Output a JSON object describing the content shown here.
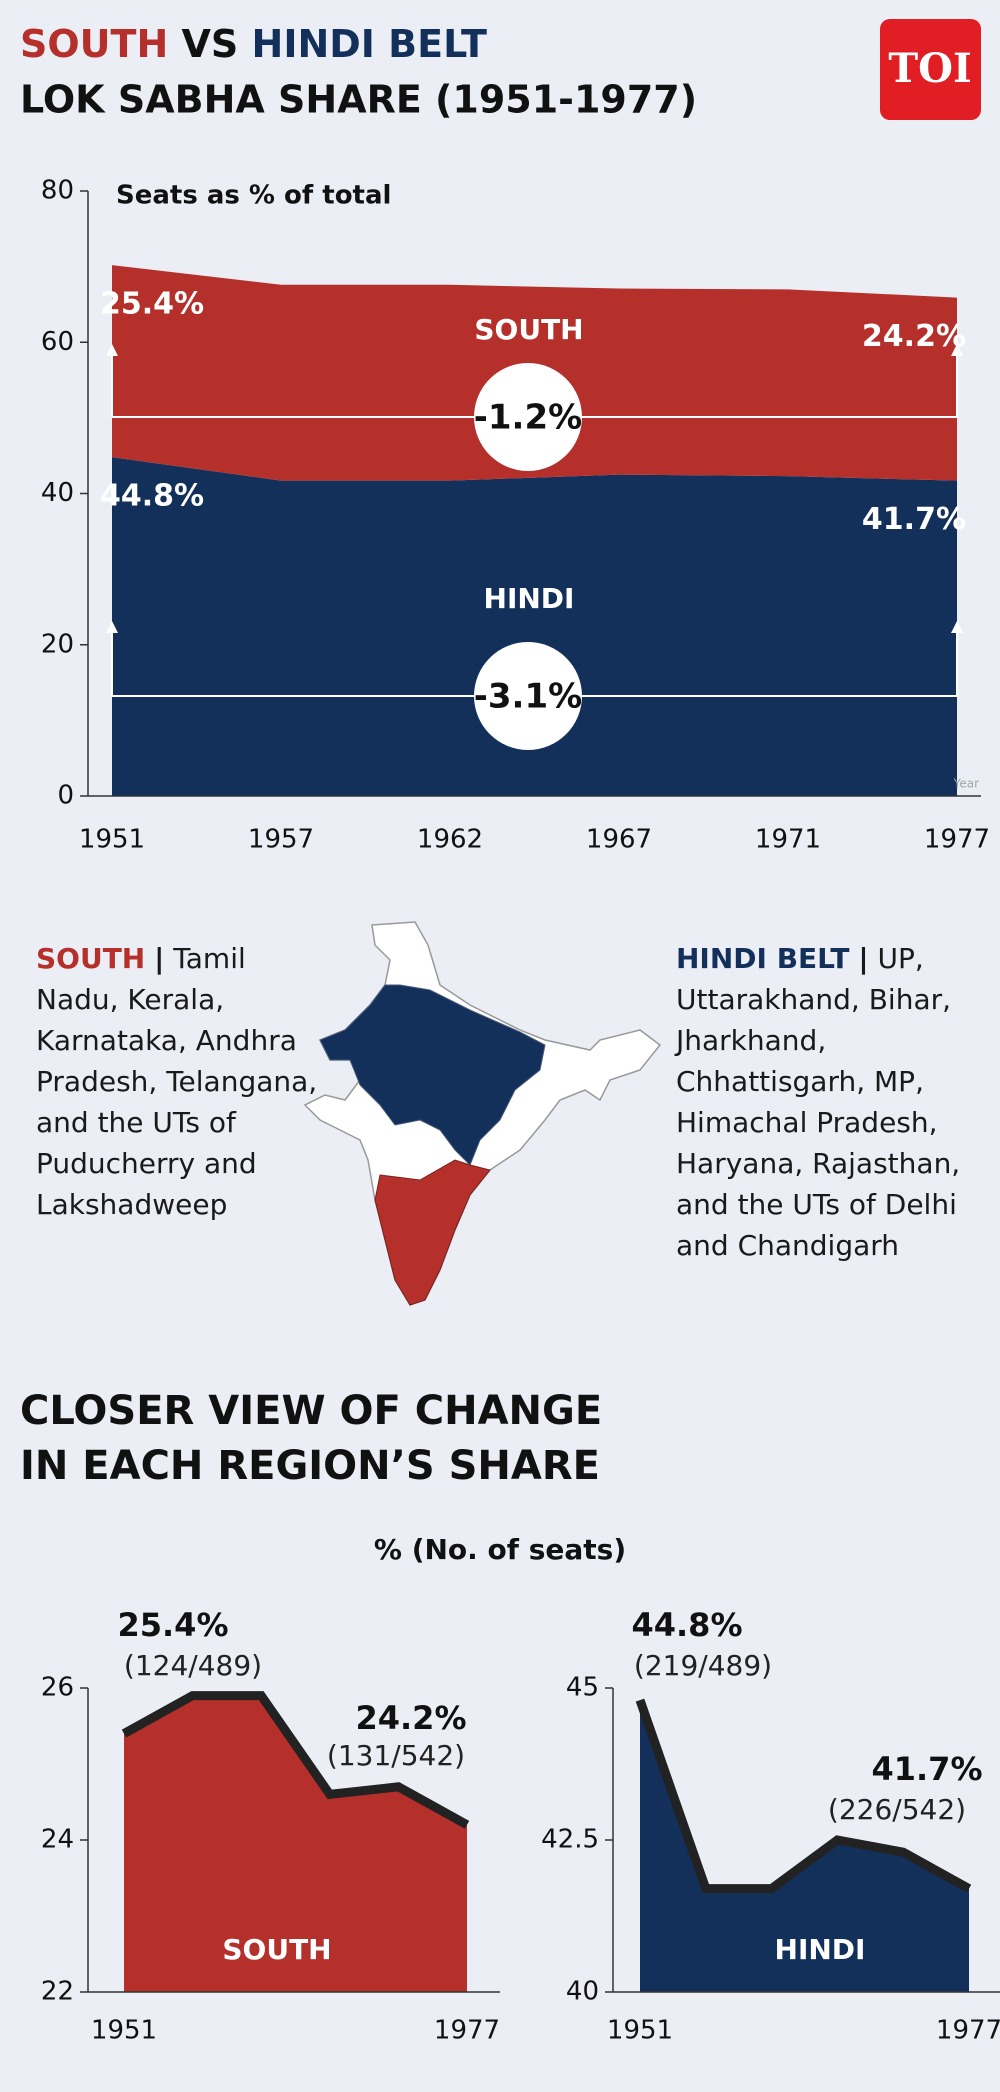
{
  "header": {
    "title_parts": [
      "SOUTH",
      "VS",
      "HINDI BELT"
    ],
    "title_colors": [
      "#b5302a",
      "#111111",
      "#13305a"
    ],
    "title_line2": "LOK SABHA SHARE (1951-1977)",
    "logo": "TOI"
  },
  "chart_data": [
    {
      "type": "area",
      "stacked": true,
      "ylabel": "Seats as % of total",
      "xlabel": "Year",
      "categories": [
        "1951",
        "1957",
        "1962",
        "1967",
        "1971",
        "1977"
      ],
      "series": [
        {
          "name": "HINDI",
          "color": "#13305a",
          "values": [
            44.8,
            41.7,
            41.7,
            42.5,
            42.3,
            41.7
          ],
          "value_labels": [
            "44.8%",
            null,
            null,
            null,
            null,
            "41.7%"
          ],
          "change_label": "-3.1%"
        },
        {
          "name": "SOUTH",
          "color": "#b5302a",
          "values": [
            25.4,
            25.9,
            25.9,
            24.6,
            24.7,
            24.2
          ],
          "value_labels": [
            "25.4%",
            null,
            null,
            null,
            null,
            "24.2%"
          ],
          "change_label": "-1.2%"
        }
      ],
      "ylim": [
        0,
        80
      ],
      "yticks": [
        0,
        20,
        40,
        60,
        80
      ]
    },
    {
      "type": "area",
      "categories": [
        "1951",
        null,
        null,
        null,
        null,
        "1977"
      ],
      "series": [
        {
          "name": "SOUTH",
          "color": "#b5302a",
          "line_color": "#222222",
          "values": [
            25.4,
            25.9,
            25.9,
            24.6,
            24.7,
            24.2
          ],
          "value_labels": [
            "25.4%",
            null,
            null,
            null,
            null,
            "24.2%"
          ],
          "seat_labels": [
            "(124/489)",
            null,
            null,
            null,
            null,
            "(131/542)"
          ]
        }
      ],
      "ylim": [
        22,
        26
      ],
      "yticks": [
        22,
        24,
        26
      ]
    },
    {
      "type": "area",
      "categories": [
        "1951",
        null,
        null,
        null,
        null,
        "1977"
      ],
      "series": [
        {
          "name": "HINDI",
          "color": "#13305a",
          "line_color": "#222222",
          "values": [
            44.8,
            41.7,
            41.7,
            42.5,
            42.3,
            41.7
          ],
          "value_labels": [
            "44.8%",
            null,
            null,
            null,
            null,
            "41.7%"
          ],
          "seat_labels": [
            "(219/489)",
            null,
            null,
            null,
            null,
            "(226/542)"
          ]
        }
      ],
      "ylim": [
        40,
        45
      ],
      "yticks": [
        40,
        42.5,
        45
      ]
    }
  ],
  "regions": [
    {
      "name": "SOUTH",
      "color": "#b5302a",
      "separator": "|",
      "states": "Tamil Nadu, Kerala, Karnataka, Andhra Pradesh, Telangana, and the UTs of Puducherry and Lakshadweep"
    },
    {
      "name": "HINDI BELT",
      "color": "#13305a",
      "separator": "|",
      "states": "UP, Uttarakhand, Bihar, Jharkhand, Chhattisgarh, MP, Himachal Pradesh, Haryana, Rajasthan, and the UTs of Delhi and Chandigarh"
    }
  ],
  "section": {
    "title_lines": [
      "CLOSER VIEW OF CHANGE",
      "IN EACH REGION’S SHARE"
    ],
    "subtitle": "% (No. of seats)"
  }
}
